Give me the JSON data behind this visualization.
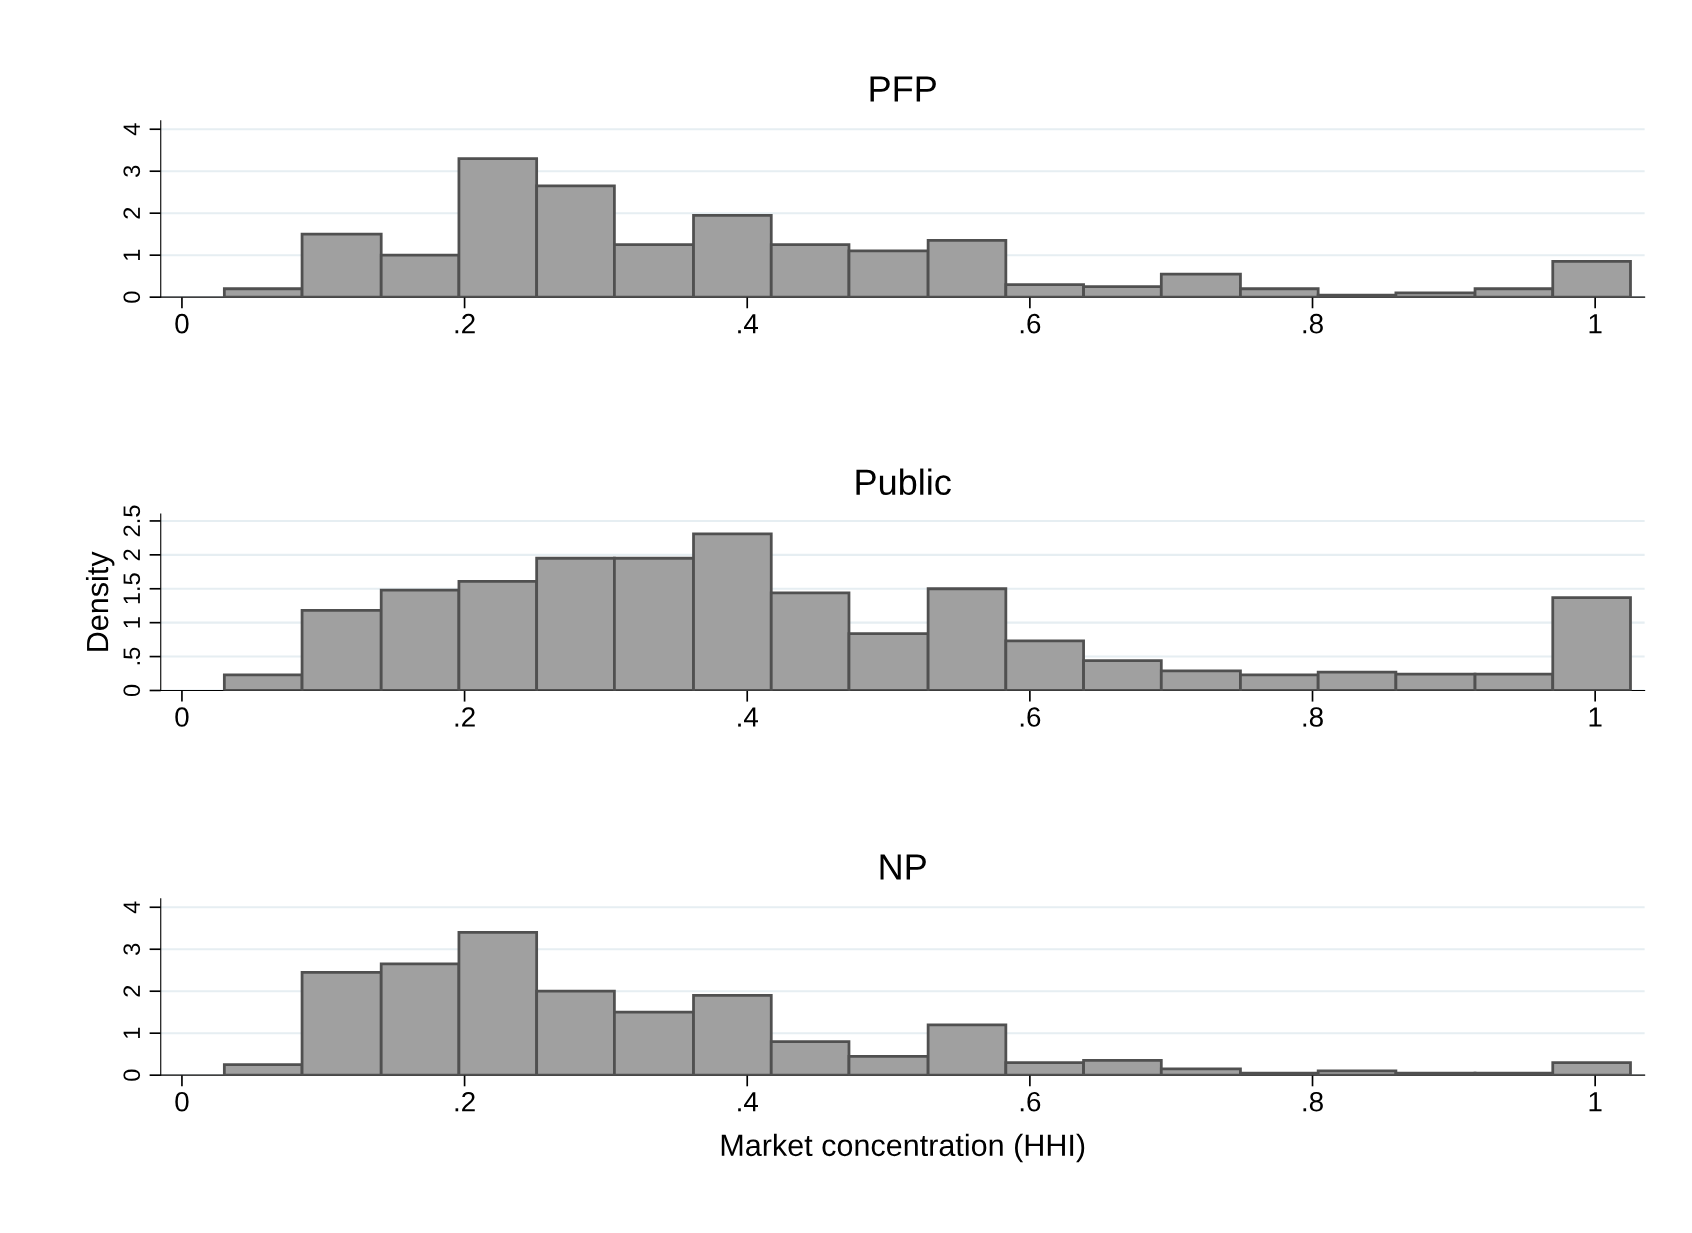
{
  "chart_data": [
    {
      "type": "histogram",
      "title": "PFP",
      "color": "#a0a0a0",
      "bins": [
        0.03,
        0.085,
        0.141,
        0.196,
        0.251,
        0.306,
        0.362,
        0.417,
        0.472,
        0.528,
        0.583,
        0.638,
        0.693,
        0.749,
        0.804,
        0.859,
        0.915,
        0.97,
        1.025
      ],
      "values": [
        0.2,
        1.5,
        1.0,
        3.3,
        2.65,
        1.25,
        1.95,
        1.25,
        1.1,
        1.35,
        0.3,
        0.25,
        0.55,
        0.2,
        0.05,
        0.1,
        0.2,
        0.85
      ],
      "xlim": [
        -0.015,
        1.035
      ],
      "xticks": [
        0,
        {
          "value": 0.2,
          "label": ".2"
        },
        {
          "value": 0.4,
          "label": ".4"
        },
        {
          "value": 0.6,
          "label": ".6"
        },
        {
          "value": 0.8,
          "label": ".8"
        },
        1
      ],
      "ylim": [
        0,
        4.2
      ],
      "yticks": [
        0,
        1,
        2,
        3,
        4
      ],
      "grid": "y"
    },
    {
      "type": "histogram",
      "title": "Public",
      "ylabel": "Density",
      "color": "#a0a0a0",
      "bins": [
        0.03,
        0.085,
        0.141,
        0.196,
        0.251,
        0.306,
        0.362,
        0.417,
        0.472,
        0.528,
        0.583,
        0.638,
        0.693,
        0.749,
        0.804,
        0.859,
        0.915,
        0.97,
        1.025
      ],
      "values": [
        0.23,
        1.18,
        1.48,
        1.61,
        1.95,
        1.95,
        2.31,
        1.44,
        0.84,
        1.5,
        0.73,
        0.44,
        0.29,
        0.23,
        0.27,
        0.24,
        0.24,
        1.37
      ],
      "xlim": [
        -0.015,
        1.035
      ],
      "xticks": [
        0,
        {
          "value": 0.2,
          "label": ".2"
        },
        {
          "value": 0.4,
          "label": ".4"
        },
        {
          "value": 0.6,
          "label": ".6"
        },
        {
          "value": 0.8,
          "label": ".8"
        },
        1
      ],
      "ylim": [
        0,
        2.6
      ],
      "yticks": [
        0,
        {
          "value": 0.5,
          "label": ".5"
        },
        1,
        1.5,
        2,
        2.5
      ],
      "grid": "y"
    },
    {
      "type": "histogram",
      "title": "NP",
      "xlabel": "Market concentration (HHI)",
      "color": "#a0a0a0",
      "bins": [
        0.03,
        0.085,
        0.141,
        0.196,
        0.251,
        0.306,
        0.362,
        0.417,
        0.472,
        0.528,
        0.583,
        0.638,
        0.693,
        0.749,
        0.804,
        0.859,
        0.915,
        0.97,
        1.025
      ],
      "values": [
        0.25,
        2.45,
        2.65,
        3.4,
        2.0,
        1.5,
        1.9,
        0.8,
        0.45,
        1.2,
        0.3,
        0.35,
        0.15,
        0.05,
        0.1,
        0.05,
        0.05,
        0.3
      ],
      "xlim": [
        -0.015,
        1.035
      ],
      "xticks": [
        0,
        {
          "value": 0.2,
          "label": ".2"
        },
        {
          "value": 0.4,
          "label": ".4"
        },
        {
          "value": 0.6,
          "label": ".6"
        },
        {
          "value": 0.8,
          "label": ".8"
        },
        1
      ],
      "ylim": [
        0,
        4.2
      ],
      "yticks": [
        0,
        1,
        2,
        3,
        4
      ],
      "grid": "y"
    }
  ]
}
